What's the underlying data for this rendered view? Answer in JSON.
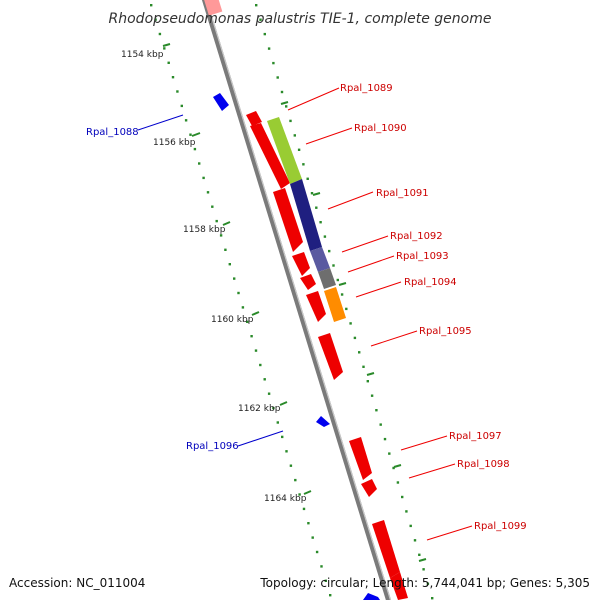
{
  "title": "Rhodopseudomonas palustris TIE-1, complete genome",
  "accession": "Accession: NC_011004",
  "topology": "Topology: circular; Length: 5,744,041 bp; Genes: 5,305",
  "ticks": [
    "1154 kbp",
    "1156 kbp",
    "1158 kbp",
    "1160 kbp",
    "1162 kbp",
    "1164 kbp"
  ],
  "genes_right": [
    "Rpal_1089",
    "Rpal_1090",
    "Rpal_1091",
    "Rpal_1092",
    "Rpal_1093",
    "Rpal_1094",
    "Rpal_1095",
    "Rpal_1097",
    "Rpal_1098",
    "Rpal_1099"
  ],
  "genes_left": [
    "Rpal_1088",
    "Rpal_1096"
  ],
  "colors": {
    "forward_gene": "#ff0000",
    "reverse_gene": "#0000ff",
    "backbone": "#808080",
    "dots": "#228b22",
    "cog_lime": "#99cc33",
    "cog_navy": "#1f1f80",
    "cog_slate": "#5a5aa0",
    "cog_gray": "#707070",
    "cog_orange": "#ff8c00"
  }
}
